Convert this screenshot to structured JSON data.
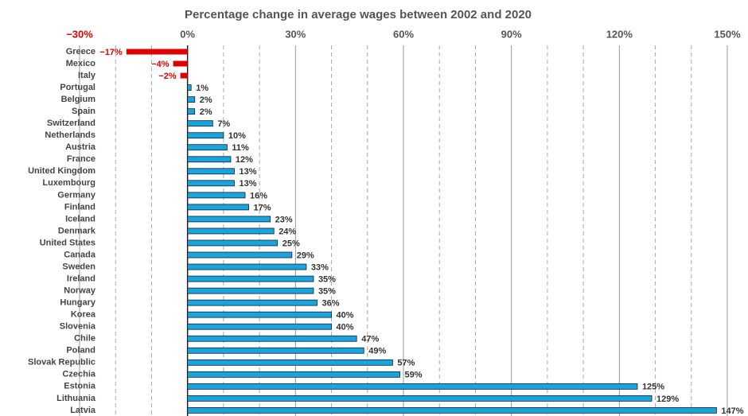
{
  "chart_data": {
    "type": "barh",
    "title": "Percentage change in average wages between 2002 and 2020",
    "categories": [
      "Greece",
      "Mexico",
      "Italy",
      "Portugal",
      "Belgium",
      "Spain",
      "Switzerland",
      "Netherlands",
      "Austria",
      "France",
      "United Kingdom",
      "Luxembourg",
      "Germany",
      "Finland",
      "Iceland",
      "Denmark",
      "United States",
      "Canada",
      "Sweden",
      "Ireland",
      "Norway",
      "Hungary",
      "Korea",
      "Slovenia",
      "Chile",
      "Poland",
      "Slovak Republic",
      "Czechia",
      "Estonia",
      "Lithuania",
      "Latvia"
    ],
    "values": [
      -17,
      -4,
      -2,
      1,
      2,
      2,
      7,
      10,
      11,
      12,
      13,
      13,
      16,
      17,
      23,
      24,
      25,
      29,
      33,
      35,
      35,
      36,
      40,
      40,
      47,
      49,
      57,
      59,
      125,
      129,
      147
    ],
    "value_labels": [
      "−17%",
      "−4%",
      "−2%",
      "1%",
      "2%",
      "2%",
      "7%",
      "10%",
      "11%",
      "12%",
      "13%",
      "13%",
      "16%",
      "17%",
      "23%",
      "24%",
      "25%",
      "29%",
      "33%",
      "35%",
      "35%",
      "36%",
      "40%",
      "40%",
      "47%",
      "49%",
      "57%",
      "59%",
      "125%",
      "129%",
      "147%"
    ],
    "color": "#1ba3dd",
    "negative_color": "#e00000",
    "xlim": [
      -30,
      150
    ],
    "xticks": [
      {
        "value": -30,
        "label": "−30%"
      },
      {
        "value": 0,
        "label": "0%"
      },
      {
        "value": 30,
        "label": "30%"
      },
      {
        "value": 60,
        "label": "60%"
      },
      {
        "value": 90,
        "label": "90%"
      },
      {
        "value": 120,
        "label": "120%"
      },
      {
        "value": 150,
        "label": "150%"
      }
    ],
    "grid": true
  }
}
